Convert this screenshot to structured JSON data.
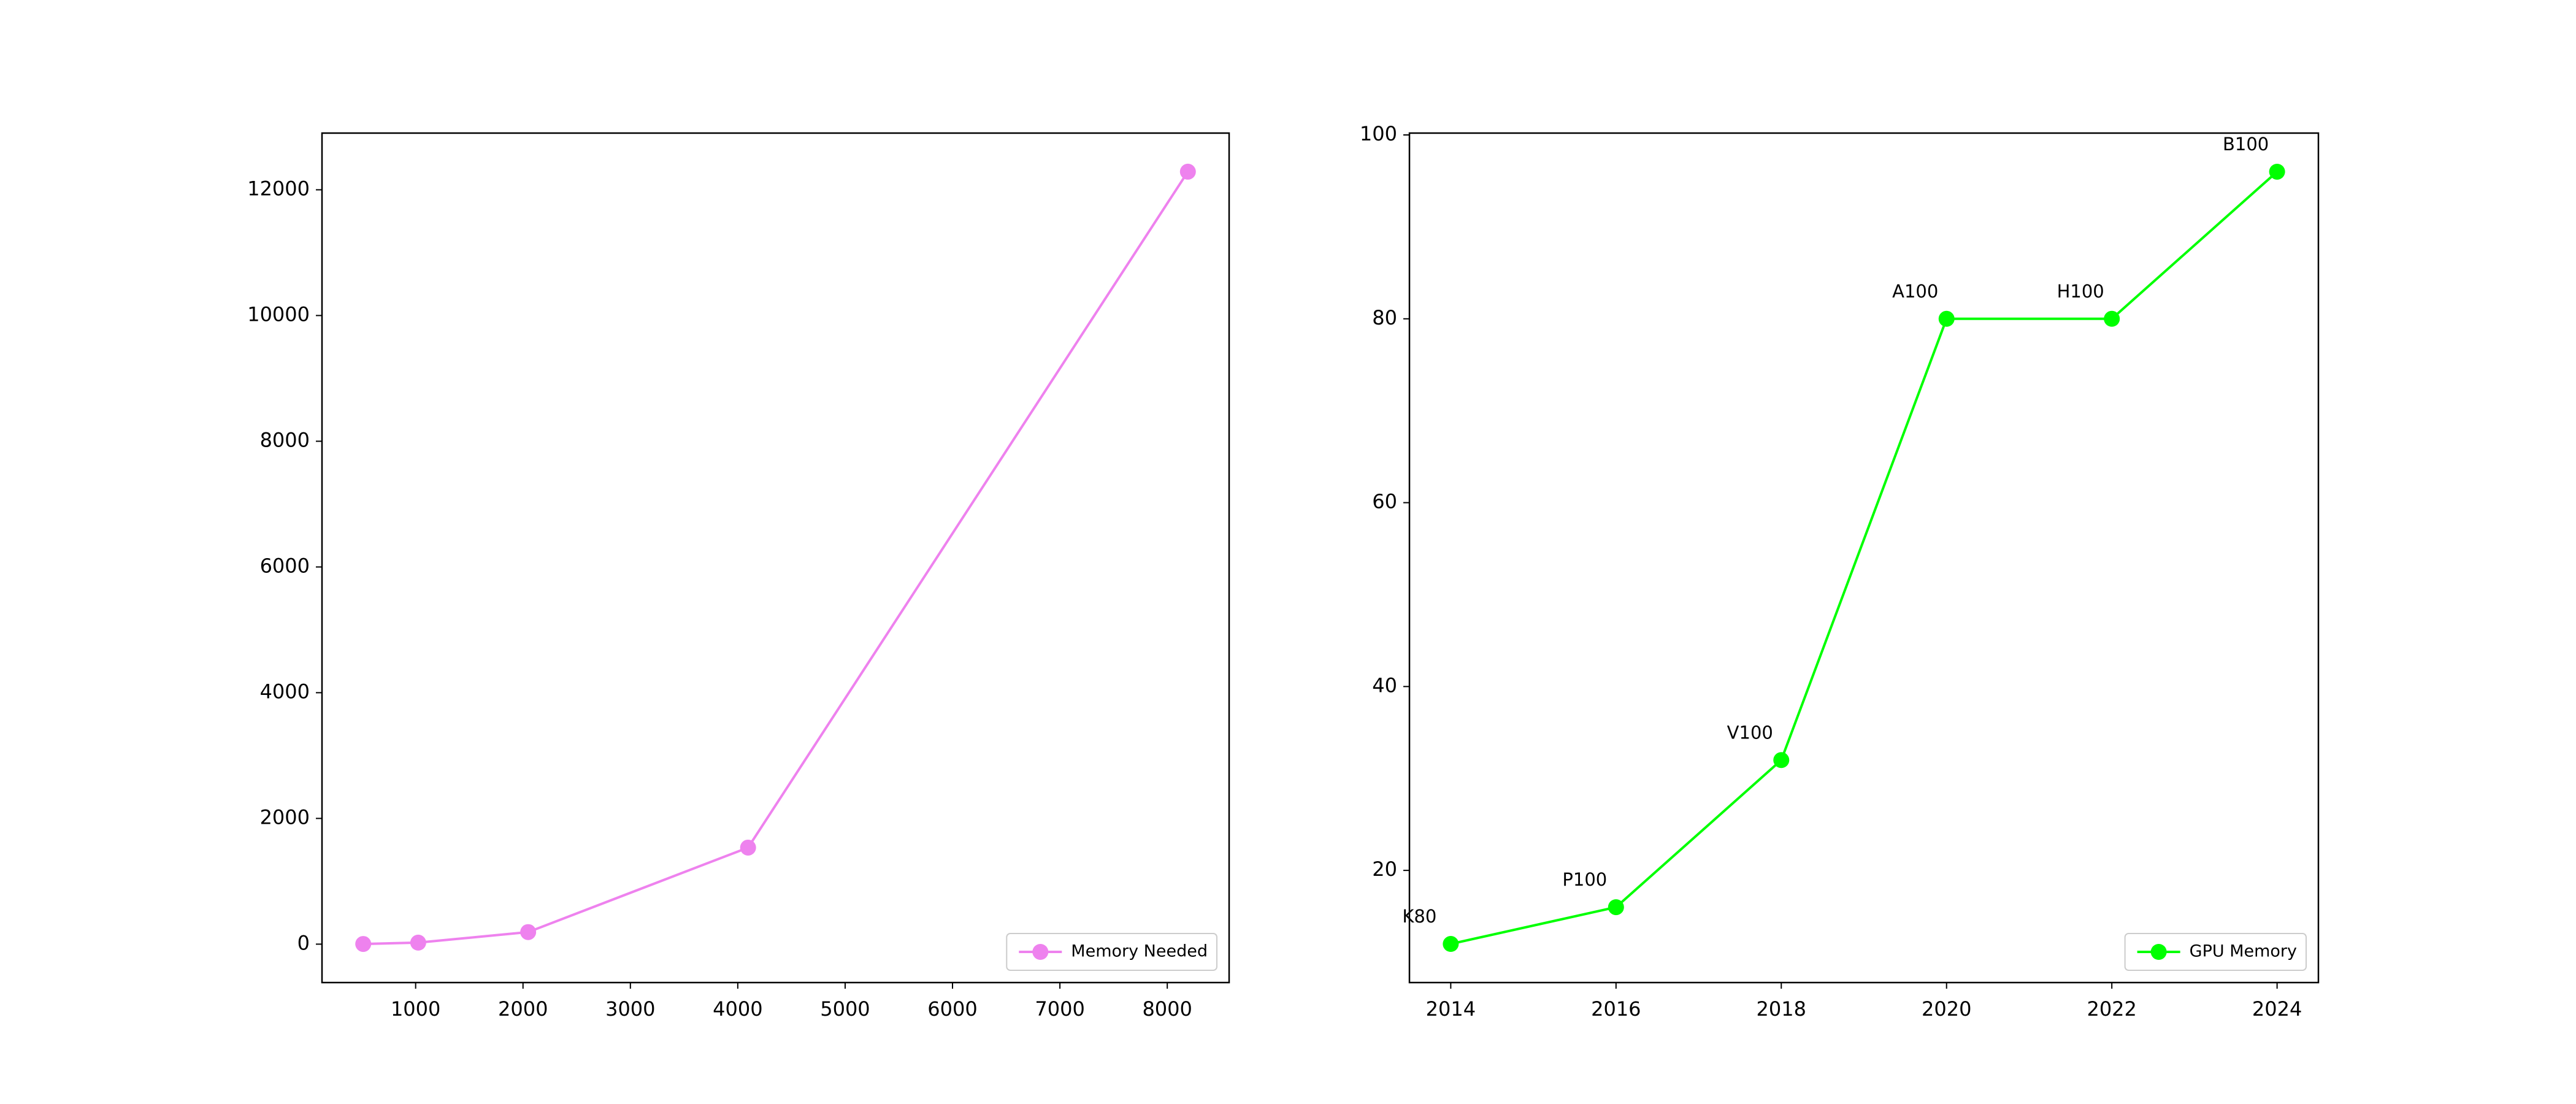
{
  "chart_data": [
    {
      "type": "line",
      "x": [
        512,
        1024,
        2048,
        4096,
        8192
      ],
      "series": [
        {
          "name": "Memory Needed",
          "color": "#ee82ee",
          "values": [
            3,
            24,
            192,
            1536,
            12288
          ]
        }
      ],
      "xlim": [
        128,
        8576
      ],
      "xticks": [
        1000,
        2000,
        3000,
        4000,
        5000,
        6000,
        7000,
        8000
      ],
      "ylim": [
        -611,
        12902
      ],
      "yticks": [
        0,
        2000,
        4000,
        6000,
        8000,
        10000,
        12000
      ],
      "legend": "lower right"
    },
    {
      "type": "line",
      "x": [
        2014,
        2016,
        2018,
        2020,
        2022,
        2024
      ],
      "series": [
        {
          "name": "GPU Memory",
          "color": "#00ff00",
          "values": [
            12,
            16,
            32,
            80,
            80,
            96
          ]
        }
      ],
      "annotations": [
        "K80",
        "P100",
        "V100",
        "A100",
        "H100",
        "B100"
      ],
      "xlim": [
        2013.5,
        2024.5
      ],
      "xticks": [
        2014,
        2016,
        2018,
        2020,
        2022,
        2024
      ],
      "ylim": [
        7.8,
        100.2
      ],
      "yticks": [
        20,
        40,
        60,
        80,
        100
      ],
      "legend": "lower right"
    }
  ]
}
